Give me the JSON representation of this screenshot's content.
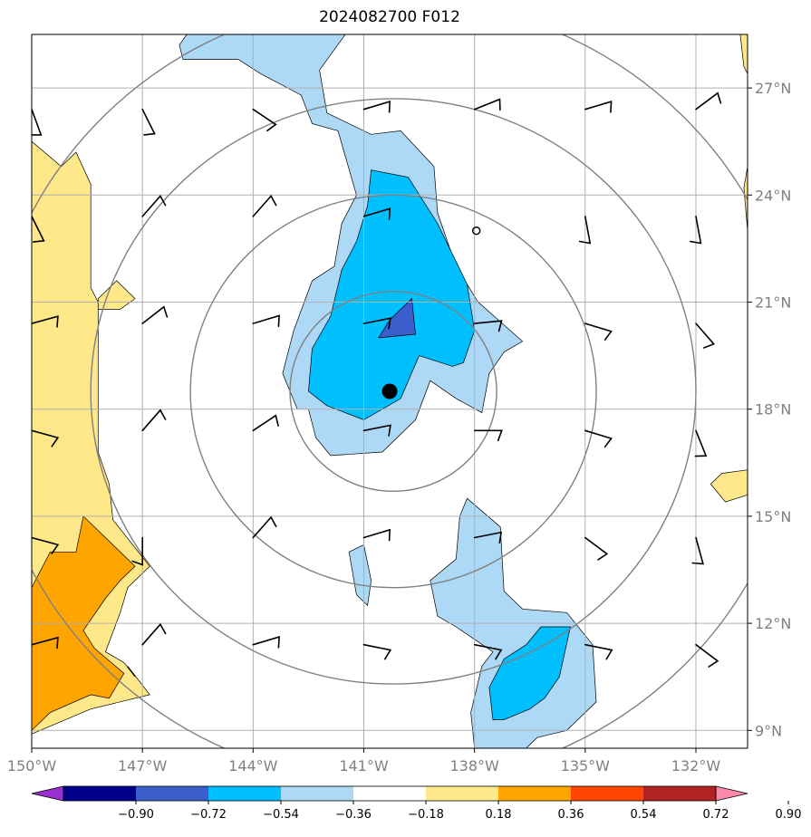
{
  "title": "2024082700 F012",
  "chart_data": {
    "type": "heatmap",
    "title": "2024082700 F012",
    "xlim": [
      -150.0,
      -130.6
    ],
    "ylim": [
      8.5,
      28.5
    ],
    "x_ticks": [
      -150,
      -147,
      -144,
      -141,
      -138,
      -135,
      -132
    ],
    "x_tick_labels": [
      "150°W",
      "147°W",
      "144°W",
      "141°W",
      "138°W",
      "135°W",
      "132°W"
    ],
    "y_ticks": [
      9,
      12,
      15,
      18,
      21,
      24,
      27
    ],
    "y_tick_labels": [
      "9°N",
      "12°N",
      "15°N",
      "18°N",
      "21°N",
      "24°N",
      "27°N"
    ],
    "grid": true,
    "center": {
      "lon": -140.3,
      "lat": 18.5
    },
    "range_rings": [
      {
        "lon": -140.2,
        "lat": 18.5,
        "r": 2.8
      },
      {
        "lon": -140.2,
        "lat": 18.5,
        "r": 5.5
      },
      {
        "lon": -140.2,
        "lat": 18.5,
        "r": 8.2
      },
      {
        "lon": -140.2,
        "lat": 18.5,
        "r": 11.0
      }
    ],
    "colorbar": {
      "boundaries": [
        "−0.90",
        "−0.72",
        "−0.54",
        "−0.36",
        "−0.18",
        "0.18",
        "0.36",
        "0.54",
        "0.72",
        "0.90"
      ],
      "colors": [
        "#9a30cf",
        "#00008b",
        "#3a5fcd",
        "#00bfff",
        "#add8f6",
        "#ffffff",
        "#ffe88a",
        "#ffa500",
        "#ff4500",
        "#b22222",
        "#ff88ad"
      ],
      "extend": "both"
    },
    "filled_regions": [
      {
        "level": "light-blue",
        "color": "#add8f6",
        "points": [
          [
            -145.8,
            28.5
          ],
          [
            -141.5,
            28.5
          ],
          [
            -142.2,
            27.5
          ],
          [
            -142.0,
            26.3
          ],
          [
            -140.8,
            25.7
          ],
          [
            -140.0,
            25.8
          ],
          [
            -139.1,
            24.8
          ],
          [
            -139.0,
            23.5
          ],
          [
            -138.5,
            22.0
          ],
          [
            -137.9,
            21.0
          ],
          [
            -136.7,
            19.9
          ],
          [
            -137.2,
            19.6
          ],
          [
            -137.6,
            19.0
          ],
          [
            -137.8,
            17.9
          ],
          [
            -138.5,
            18.3
          ],
          [
            -139.2,
            18.8
          ],
          [
            -139.6,
            17.7
          ],
          [
            -140.5,
            16.8
          ],
          [
            -141.9,
            16.7
          ],
          [
            -142.3,
            17.2
          ],
          [
            -142.5,
            18.0
          ],
          [
            -142.8,
            18.0
          ],
          [
            -143.2,
            19.0
          ],
          [
            -142.9,
            20.2
          ],
          [
            -142.4,
            21.6
          ],
          [
            -141.8,
            22.0
          ],
          [
            -141.6,
            23.2
          ],
          [
            -141.2,
            24.0
          ],
          [
            -141.7,
            25.8
          ],
          [
            -142.4,
            26.0
          ],
          [
            -142.7,
            26.8
          ],
          [
            -143.8,
            27.4
          ],
          [
            -144.4,
            27.8
          ],
          [
            -145.9,
            27.8
          ],
          [
            -146.0,
            28.2
          ]
        ]
      },
      {
        "level": "light-blue",
        "color": "#add8f6",
        "points": [
          [
            -141.4,
            14.0
          ],
          [
            -141.0,
            14.2
          ],
          [
            -140.8,
            13.2
          ],
          [
            -140.9,
            12.5
          ],
          [
            -141.2,
            12.8
          ]
        ]
      },
      {
        "level": "light-blue",
        "color": "#add8f6",
        "points": [
          [
            -138.2,
            15.5
          ],
          [
            -137.3,
            14.7
          ],
          [
            -137.2,
            12.9
          ],
          [
            -136.7,
            12.4
          ],
          [
            -135.5,
            12.3
          ],
          [
            -134.8,
            11.4
          ],
          [
            -134.7,
            9.8
          ],
          [
            -135.5,
            9.0
          ],
          [
            -136.3,
            8.8
          ],
          [
            -136.6,
            8.5
          ],
          [
            -138.0,
            8.5
          ],
          [
            -138.1,
            9.5
          ],
          [
            -137.8,
            10.8
          ],
          [
            -137.5,
            11.2
          ],
          [
            -138.5,
            11.9
          ],
          [
            -139.0,
            12.2
          ],
          [
            -139.2,
            13.2
          ],
          [
            -138.5,
            13.8
          ],
          [
            -138.4,
            15.0
          ]
        ]
      },
      {
        "level": "blue",
        "color": "#00bfff",
        "points": [
          [
            -140.8,
            24.7
          ],
          [
            -139.8,
            24.5
          ],
          [
            -139.0,
            23.2
          ],
          [
            -138.2,
            21.5
          ],
          [
            -138.0,
            20.2
          ],
          [
            -138.3,
            19.3
          ],
          [
            -138.6,
            19.2
          ],
          [
            -139.5,
            19.5
          ],
          [
            -140.0,
            18.3
          ],
          [
            -141.0,
            17.7
          ],
          [
            -142.0,
            18.1
          ],
          [
            -142.5,
            18.5
          ],
          [
            -142.4,
            19.7
          ],
          [
            -141.9,
            20.6
          ],
          [
            -141.6,
            21.9
          ],
          [
            -141.2,
            22.7
          ],
          [
            -140.9,
            23.7
          ]
        ]
      },
      {
        "level": "blue",
        "color": "#00bfff",
        "points": [
          [
            -136.2,
            11.9
          ],
          [
            -135.4,
            11.9
          ],
          [
            -135.7,
            10.5
          ],
          [
            -136.1,
            9.9
          ],
          [
            -136.5,
            9.6
          ],
          [
            -137.2,
            9.3
          ],
          [
            -137.5,
            9.3
          ],
          [
            -137.6,
            10.2
          ],
          [
            -137.2,
            11.0
          ],
          [
            -136.6,
            11.4
          ]
        ]
      },
      {
        "level": "dark-blue",
        "color": "#3a5fcd",
        "points": [
          [
            -139.7,
            21.1
          ],
          [
            -139.6,
            20.1
          ],
          [
            -140.6,
            20.0
          ],
          [
            -140.3,
            20.5
          ]
        ]
      },
      {
        "level": "yellow",
        "color": "#ffe88a",
        "points": [
          [
            -150.0,
            25.5
          ],
          [
            -149.2,
            24.8
          ],
          [
            -148.8,
            25.2
          ],
          [
            -148.4,
            24.3
          ],
          [
            -148.4,
            21.4
          ],
          [
            -148.2,
            21.0
          ],
          [
            -148.2,
            16.8
          ],
          [
            -147.9,
            15.9
          ],
          [
            -147.8,
            14.9
          ],
          [
            -146.8,
            13.6
          ],
          [
            -147.4,
            13.0
          ],
          [
            -147.6,
            12.3
          ],
          [
            -148.0,
            11.2
          ],
          [
            -147.5,
            10.9
          ],
          [
            -147.2,
            10.5
          ],
          [
            -147.4,
            10.8
          ],
          [
            -146.8,
            10.0
          ],
          [
            -148.4,
            9.6
          ],
          [
            -150.0,
            8.9
          ]
        ]
      },
      {
        "level": "yellow",
        "color": "#ffe88a",
        "points": [
          [
            -148.2,
            21.1
          ],
          [
            -147.7,
            21.6
          ],
          [
            -147.2,
            21.1
          ],
          [
            -147.6,
            20.8
          ],
          [
            -148.2,
            20.8
          ]
        ]
      },
      {
        "level": "yellow",
        "color": "#ffe88a",
        "points": [
          [
            -130.6,
            28.5
          ],
          [
            -130.8,
            28.5
          ],
          [
            -130.7,
            27.6
          ],
          [
            -130.6,
            27.4
          ]
        ]
      },
      {
        "level": "yellow",
        "color": "#ffe88a",
        "points": [
          [
            -130.6,
            24.8
          ],
          [
            -130.7,
            24.2
          ],
          [
            -130.6,
            23.0
          ]
        ]
      },
      {
        "level": "yellow",
        "color": "#ffe88a",
        "points": [
          [
            -130.6,
            16.3
          ],
          [
            -131.3,
            16.2
          ],
          [
            -131.6,
            15.9
          ],
          [
            -131.2,
            15.4
          ],
          [
            -130.6,
            15.6
          ]
        ]
      },
      {
        "level": "orange",
        "color": "#ffa500",
        "points": [
          [
            -150.0,
            13.0
          ],
          [
            -149.5,
            14.0
          ],
          [
            -148.8,
            14.0
          ],
          [
            -148.6,
            15.0
          ],
          [
            -147.2,
            13.6
          ],
          [
            -147.6,
            13.2
          ],
          [
            -148.0,
            12.7
          ],
          [
            -148.6,
            11.8
          ],
          [
            -148.3,
            11.3
          ],
          [
            -147.5,
            10.6
          ],
          [
            -147.9,
            9.9
          ],
          [
            -148.4,
            10.0
          ],
          [
            -149.5,
            9.5
          ],
          [
            -150.0,
            9.0
          ]
        ]
      }
    ],
    "wind_barbs": [
      {
        "lon": -150.0,
        "lat": 26.4,
        "u": 4,
        "v": -11
      },
      {
        "lon": -147.0,
        "lat": 26.4,
        "u": 5,
        "v": -10
      },
      {
        "lon": -144.0,
        "lat": 26.4,
        "u": 9,
        "v": -6
      },
      {
        "lon": -141.0,
        "lat": 26.4,
        "u": 10,
        "v": 3
      },
      {
        "lon": -138.0,
        "lat": 26.4,
        "u": 10,
        "v": 4
      },
      {
        "lon": -135.0,
        "lat": 26.4,
        "u": 10,
        "v": 3
      },
      {
        "lon": -132.0,
        "lat": 26.4,
        "u": 8,
        "v": 6
      },
      {
        "lon": -150.0,
        "lat": 23.4,
        "u": 5,
        "v": -10
      },
      {
        "lon": -147.0,
        "lat": 23.4,
        "u": 7,
        "v": 8
      },
      {
        "lon": -144.0,
        "lat": 23.4,
        "u": 7,
        "v": 8
      },
      {
        "lon": -141.0,
        "lat": 23.4,
        "u": 10,
        "v": 3
      },
      {
        "lon": -135.0,
        "lat": 23.4,
        "u": 2,
        "v": -11
      },
      {
        "lon": -132.0,
        "lat": 23.4,
        "u": 2,
        "v": -11
      },
      {
        "lon": -150.0,
        "lat": 20.4,
        "u": 11,
        "v": 3
      },
      {
        "lon": -147.0,
        "lat": 20.4,
        "u": 9,
        "v": 7
      },
      {
        "lon": -144.0,
        "lat": 20.4,
        "u": 10,
        "v": 3
      },
      {
        "lon": -141.0,
        "lat": 20.4,
        "u": 10,
        "v": 2
      },
      {
        "lon": -138.0,
        "lat": 20.4,
        "u": 10,
        "v": 1
      },
      {
        "lon": -135.0,
        "lat": 20.4,
        "u": 10,
        "v": -3
      },
      {
        "lon": -132.0,
        "lat": 20.4,
        "u": 7,
        "v": -8
      },
      {
        "lon": -150.0,
        "lat": 17.4,
        "u": 11,
        "v": -3
      },
      {
        "lon": -147.0,
        "lat": 17.4,
        "u": 7,
        "v": 8
      },
      {
        "lon": -144.0,
        "lat": 17.4,
        "u": 9,
        "v": 6
      },
      {
        "lon": -141.0,
        "lat": 17.4,
        "u": 10,
        "v": 2
      },
      {
        "lon": -138.0,
        "lat": 17.4,
        "u": 10,
        "v": 0
      },
      {
        "lon": -135.0,
        "lat": 17.4,
        "u": 10,
        "v": -3
      },
      {
        "lon": -132.0,
        "lat": 17.4,
        "u": 4,
        "v": -10
      },
      {
        "lon": -150.0,
        "lat": 14.4,
        "u": 11,
        "v": -3
      },
      {
        "lon": -147.0,
        "lat": 14.4,
        "u": 0,
        "v": -11
      },
      {
        "lon": -144.0,
        "lat": 14.4,
        "u": 7,
        "v": 8
      },
      {
        "lon": -141.0,
        "lat": 14.4,
        "u": 10,
        "v": 3
      },
      {
        "lon": -138.0,
        "lat": 14.4,
        "u": 10,
        "v": 2
      },
      {
        "lon": -135.0,
        "lat": 14.4,
        "u": 8,
        "v": -6
      },
      {
        "lon": -132.0,
        "lat": 14.4,
        "u": 3,
        "v": -11
      },
      {
        "lon": -150.0,
        "lat": 11.4,
        "u": 11,
        "v": 3
      },
      {
        "lon": -147.0,
        "lat": 11.4,
        "u": 7,
        "v": 8
      },
      {
        "lon": -144.0,
        "lat": 11.4,
        "u": 10,
        "v": 3
      },
      {
        "lon": -141.0,
        "lat": 11.4,
        "u": 10,
        "v": -2
      },
      {
        "lon": -138.0,
        "lat": 11.4,
        "u": 10,
        "v": -2
      },
      {
        "lon": -135.0,
        "lat": 11.4,
        "u": 10,
        "v": -2
      },
      {
        "lon": -132.0,
        "lat": 11.4,
        "u": 8,
        "v": -6
      }
    ],
    "markers": [
      {
        "kind": "storm-center",
        "lon": -140.3,
        "lat": 18.5
      },
      {
        "kind": "calm",
        "lon": -137.95,
        "lat": 23.0
      }
    ]
  }
}
